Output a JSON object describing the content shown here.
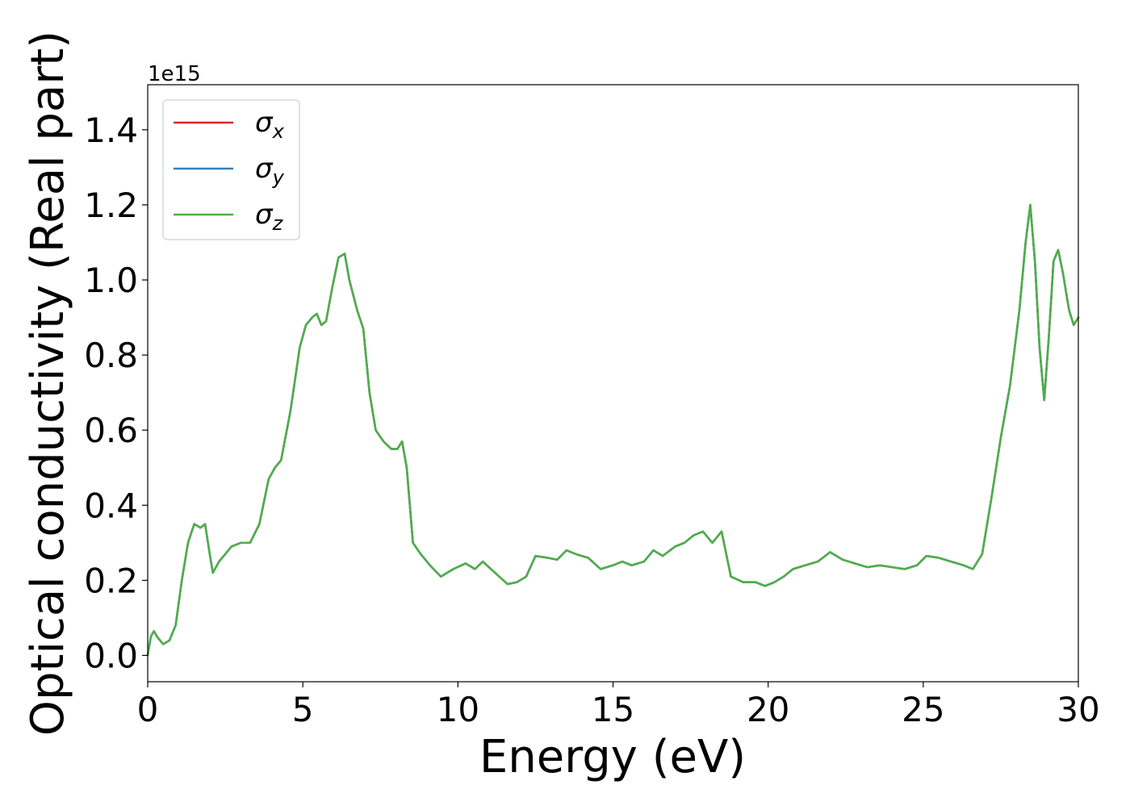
{
  "chart_data": {
    "type": "line",
    "title": "",
    "xlabel": "Energy (eV)",
    "ylabel": "Optical conductivity (Real part)",
    "y_multiplier_label": "1e15",
    "xlim": [
      0,
      30
    ],
    "ylim": [
      -0.07,
      1.52
    ],
    "xticks": [
      0,
      5,
      10,
      15,
      20,
      25,
      30
    ],
    "xtick_labels": [
      "0",
      "5",
      "10",
      "15",
      "20",
      "25",
      "30"
    ],
    "yticks": [
      0.0,
      0.2,
      0.4,
      0.6,
      0.8,
      1.0,
      1.2,
      1.4
    ],
    "ytick_labels": [
      "0.0",
      "0.2",
      "0.4",
      "0.6",
      "0.8",
      "1.0",
      "1.2",
      "1.4"
    ],
    "grid": false,
    "legend_position": "top-left",
    "x": [
      0,
      0.1,
      0.2,
      0.3,
      0.5,
      0.7,
      0.9,
      1.1,
      1.3,
      1.5,
      1.6,
      1.7,
      1.85,
      2.0,
      2.1,
      2.3,
      2.5,
      2.7,
      3.0,
      3.3,
      3.6,
      3.9,
      4.1,
      4.3,
      4.6,
      4.9,
      5.1,
      5.3,
      5.45,
      5.6,
      5.75,
      5.95,
      6.15,
      6.35,
      6.5,
      6.75,
      6.95,
      7.15,
      7.35,
      7.6,
      7.85,
      8.05,
      8.2,
      8.35,
      8.55,
      8.8,
      9.1,
      9.45,
      9.85,
      10.25,
      10.55,
      10.8,
      11.2,
      11.6,
      11.9,
      12.2,
      12.5,
      12.9,
      13.2,
      13.5,
      13.8,
      14.2,
      14.6,
      15.0,
      15.3,
      15.6,
      16.0,
      16.3,
      16.6,
      17.0,
      17.3,
      17.6,
      17.9,
      18.2,
      18.5,
      18.8,
      19.2,
      19.6,
      19.9,
      20.2,
      20.5,
      20.8,
      21.2,
      21.6,
      22.0,
      22.4,
      22.8,
      23.2,
      23.6,
      24.0,
      24.4,
      24.8,
      25.1,
      25.5,
      25.9,
      26.3,
      26.6,
      26.9,
      27.2,
      27.5,
      27.8,
      28.1,
      28.3,
      28.45,
      28.6,
      28.75,
      28.9,
      29.05,
      29.2,
      29.35,
      29.5,
      29.7,
      29.85,
      30.0
    ],
    "series": [
      {
        "name": "σx",
        "color": "#d62728",
        "values": [
          0.0,
          0.05,
          0.065,
          0.05,
          0.03,
          0.04,
          0.08,
          0.2,
          0.3,
          0.35,
          0.345,
          0.34,
          0.35,
          0.27,
          0.22,
          0.25,
          0.27,
          0.29,
          0.3,
          0.3,
          0.35,
          0.47,
          0.5,
          0.52,
          0.65,
          0.82,
          0.88,
          0.9,
          0.91,
          0.88,
          0.89,
          0.98,
          1.06,
          1.07,
          1.0,
          0.92,
          0.87,
          0.7,
          0.6,
          0.57,
          0.55,
          0.55,
          0.57,
          0.5,
          0.3,
          0.27,
          0.24,
          0.21,
          0.23,
          0.245,
          0.23,
          0.25,
          0.22,
          0.19,
          0.195,
          0.21,
          0.265,
          0.26,
          0.255,
          0.28,
          0.27,
          0.26,
          0.23,
          0.24,
          0.25,
          0.24,
          0.25,
          0.28,
          0.265,
          0.29,
          0.3,
          0.32,
          0.33,
          0.3,
          0.33,
          0.21,
          0.195,
          0.195,
          0.185,
          0.195,
          0.21,
          0.23,
          0.24,
          0.25,
          0.275,
          0.255,
          0.245,
          0.235,
          0.24,
          0.235,
          0.23,
          0.24,
          0.265,
          0.26,
          0.25,
          0.24,
          0.23,
          0.27,
          0.42,
          0.58,
          0.72,
          0.92,
          1.1,
          1.2,
          1.05,
          0.82,
          0.68,
          0.85,
          1.05,
          1.08,
          1.02,
          0.92,
          0.88,
          0.9
        ]
      },
      {
        "name": "σy",
        "color": "#377eb8",
        "values": [
          0.0,
          0.05,
          0.065,
          0.05,
          0.03,
          0.04,
          0.08,
          0.2,
          0.3,
          0.35,
          0.345,
          0.34,
          0.35,
          0.27,
          0.22,
          0.25,
          0.27,
          0.29,
          0.3,
          0.3,
          0.35,
          0.47,
          0.5,
          0.52,
          0.65,
          0.82,
          0.88,
          0.9,
          0.91,
          0.88,
          0.89,
          0.98,
          1.06,
          1.07,
          1.0,
          0.92,
          0.87,
          0.7,
          0.6,
          0.57,
          0.55,
          0.55,
          0.57,
          0.5,
          0.3,
          0.27,
          0.24,
          0.21,
          0.23,
          0.245,
          0.23,
          0.25,
          0.22,
          0.19,
          0.195,
          0.21,
          0.265,
          0.26,
          0.255,
          0.28,
          0.27,
          0.26,
          0.23,
          0.24,
          0.25,
          0.24,
          0.25,
          0.28,
          0.265,
          0.29,
          0.3,
          0.32,
          0.33,
          0.3,
          0.33,
          0.21,
          0.195,
          0.195,
          0.185,
          0.195,
          0.21,
          0.23,
          0.24,
          0.25,
          0.275,
          0.255,
          0.245,
          0.235,
          0.24,
          0.235,
          0.23,
          0.24,
          0.265,
          0.26,
          0.25,
          0.24,
          0.23,
          0.27,
          0.42,
          0.58,
          0.72,
          0.92,
          1.1,
          1.2,
          1.05,
          0.82,
          0.68,
          0.85,
          1.05,
          1.08,
          1.02,
          0.92,
          0.88,
          0.9
        ]
      },
      {
        "name": "σz",
        "color": "#4daf4a",
        "values": [
          0.0,
          0.05,
          0.065,
          0.05,
          0.03,
          0.04,
          0.08,
          0.2,
          0.3,
          0.35,
          0.345,
          0.34,
          0.35,
          0.27,
          0.22,
          0.25,
          0.27,
          0.29,
          0.3,
          0.3,
          0.35,
          0.47,
          0.5,
          0.52,
          0.65,
          0.82,
          0.88,
          0.9,
          0.91,
          0.88,
          0.89,
          0.98,
          1.06,
          1.07,
          1.0,
          0.92,
          0.87,
          0.7,
          0.6,
          0.57,
          0.55,
          0.55,
          0.57,
          0.5,
          0.3,
          0.27,
          0.24,
          0.21,
          0.23,
          0.245,
          0.23,
          0.25,
          0.22,
          0.19,
          0.195,
          0.21,
          0.265,
          0.26,
          0.255,
          0.28,
          0.27,
          0.26,
          0.23,
          0.24,
          0.25,
          0.24,
          0.25,
          0.28,
          0.265,
          0.29,
          0.3,
          0.32,
          0.33,
          0.3,
          0.33,
          0.21,
          0.195,
          0.195,
          0.185,
          0.195,
          0.21,
          0.23,
          0.24,
          0.25,
          0.275,
          0.255,
          0.245,
          0.235,
          0.24,
          0.235,
          0.23,
          0.24,
          0.265,
          0.26,
          0.25,
          0.24,
          0.23,
          0.27,
          0.42,
          0.58,
          0.72,
          0.92,
          1.1,
          1.2,
          1.05,
          0.82,
          0.68,
          0.85,
          1.05,
          1.08,
          1.02,
          0.92,
          0.88,
          0.9
        ]
      }
    ]
  }
}
